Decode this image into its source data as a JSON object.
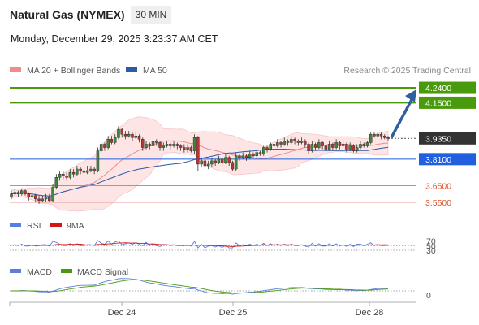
{
  "header": {
    "title": "Natural Gas (NYMEX)",
    "timeframe": "30 MIN",
    "datetime": "Monday, December 29, 2025 3:23:37 AM CET"
  },
  "legend": {
    "ma20_label": "MA 20 + Bollinger Bands",
    "ma50_label": "MA 50",
    "credit": "Research © 2025 Trading Central",
    "rsi_label": "RSI",
    "rsi_ma_label": "9MA",
    "macd_label": "MACD",
    "macd_signal_label": "MACD Signal"
  },
  "colors": {
    "ma20": "#f28b8b",
    "ma50": "#2e5aa8",
    "bollinger_fill": "#fde0e0",
    "target_green": "#4a9a0e",
    "pivot_blue": "#1f5fe0",
    "support_red": "#e87a7a",
    "price_badge": "#333333",
    "arrow": "#2f5f9e",
    "rsi": "#5b7fe0",
    "rsi_ma": "#d01818",
    "macd": "#5b7fe0",
    "macd_signal": "#4a9a0e",
    "candle_up": "#3a8a3a",
    "candle_down": "#c03030"
  },
  "chart_data": {
    "type": "candlestick",
    "instrument": "Natural Gas (NYMEX)",
    "interval": "30 MIN",
    "x_ticks": [
      "Dec 24",
      "Dec 25",
      "Dec 28"
    ],
    "levels": [
      {
        "value": 4.24,
        "label": "4.2400",
        "kind": "resistance"
      },
      {
        "value": 4.15,
        "label": "4.1500",
        "kind": "resistance"
      },
      {
        "value": 3.935,
        "label": "3.9350",
        "kind": "last"
      },
      {
        "value": 3.81,
        "label": "3.8100",
        "kind": "pivot"
      },
      {
        "value": 3.65,
        "label": "3.6500",
        "kind": "support"
      },
      {
        "value": 3.55,
        "label": "3.5500",
        "kind": "support"
      }
    ],
    "target_arrow": {
      "from": 3.935,
      "to": 4.24
    },
    "candles": [
      [
        3.58,
        3.6,
        3.62,
        3.57
      ],
      [
        3.6,
        3.61,
        3.63,
        3.59
      ],
      [
        3.61,
        3.6,
        3.62,
        3.58
      ],
      [
        3.6,
        3.62,
        3.63,
        3.59
      ],
      [
        3.62,
        3.6,
        3.63,
        3.59
      ],
      [
        3.6,
        3.58,
        3.61,
        3.56
      ],
      [
        3.58,
        3.59,
        3.61,
        3.57
      ],
      [
        3.59,
        3.57,
        3.6,
        3.55
      ],
      [
        3.57,
        3.56,
        3.59,
        3.54
      ],
      [
        3.56,
        3.57,
        3.59,
        3.55
      ],
      [
        3.57,
        3.58,
        3.6,
        3.55
      ],
      [
        3.58,
        3.56,
        3.6,
        3.55
      ],
      [
        3.56,
        3.64,
        3.66,
        3.55
      ],
      [
        3.64,
        3.7,
        3.72,
        3.63
      ],
      [
        3.7,
        3.72,
        3.74,
        3.68
      ],
      [
        3.72,
        3.71,
        3.74,
        3.69
      ],
      [
        3.71,
        3.7,
        3.73,
        3.68
      ],
      [
        3.7,
        3.73,
        3.75,
        3.69
      ],
      [
        3.73,
        3.72,
        3.75,
        3.7
      ],
      [
        3.72,
        3.75,
        3.77,
        3.71
      ],
      [
        3.75,
        3.74,
        3.76,
        3.72
      ],
      [
        3.74,
        3.73,
        3.76,
        3.71
      ],
      [
        3.73,
        3.74,
        3.77,
        3.72
      ],
      [
        3.74,
        3.75,
        3.77,
        3.73
      ],
      [
        3.75,
        3.74,
        3.76,
        3.72
      ],
      [
        3.74,
        3.86,
        3.88,
        3.73
      ],
      [
        3.86,
        3.9,
        3.92,
        3.85
      ],
      [
        3.9,
        3.88,
        3.91,
        3.86
      ],
      [
        3.88,
        3.93,
        3.95,
        3.87
      ],
      [
        3.93,
        3.91,
        3.95,
        3.9
      ],
      [
        3.91,
        3.94,
        3.96,
        3.9
      ],
      [
        3.94,
        3.99,
        4.01,
        3.93
      ],
      [
        3.99,
        3.96,
        4.0,
        3.94
      ],
      [
        3.96,
        3.95,
        3.98,
        3.93
      ],
      [
        3.95,
        3.96,
        3.98,
        3.94
      ],
      [
        3.96,
        3.94,
        3.97,
        3.92
      ],
      [
        3.94,
        3.95,
        3.97,
        3.93
      ],
      [
        3.95,
        3.93,
        3.96,
        3.91
      ],
      [
        3.93,
        3.88,
        3.94,
        3.86
      ],
      [
        3.88,
        3.9,
        3.92,
        3.87
      ],
      [
        3.9,
        3.89,
        3.91,
        3.87
      ],
      [
        3.89,
        3.92,
        3.94,
        3.88
      ],
      [
        3.92,
        3.91,
        3.93,
        3.89
      ],
      [
        3.91,
        3.88,
        3.92,
        3.86
      ],
      [
        3.88,
        3.89,
        3.91,
        3.86
      ],
      [
        3.89,
        3.9,
        3.92,
        3.88
      ],
      [
        3.9,
        3.89,
        3.91,
        3.87
      ],
      [
        3.89,
        3.9,
        3.92,
        3.88
      ],
      [
        3.9,
        3.89,
        3.91,
        3.87
      ],
      [
        3.89,
        3.88,
        3.9,
        3.86
      ],
      [
        3.88,
        3.87,
        3.9,
        3.85
      ],
      [
        3.87,
        3.88,
        3.9,
        3.85
      ],
      [
        3.88,
        3.86,
        3.89,
        3.85
      ],
      [
        3.86,
        3.94,
        3.96,
        3.84
      ],
      [
        3.94,
        3.78,
        3.95,
        3.74
      ],
      [
        3.78,
        3.8,
        3.82,
        3.76
      ],
      [
        3.8,
        3.77,
        3.82,
        3.75
      ],
      [
        3.77,
        3.78,
        3.8,
        3.75
      ],
      [
        3.78,
        3.8,
        3.82,
        3.76
      ],
      [
        3.8,
        3.79,
        3.81,
        3.77
      ],
      [
        3.79,
        3.81,
        3.83,
        3.78
      ],
      [
        3.81,
        3.79,
        3.82,
        3.77
      ],
      [
        3.79,
        3.82,
        3.84,
        3.78
      ],
      [
        3.82,
        3.79,
        3.83,
        3.77
      ],
      [
        3.79,
        3.75,
        3.8,
        3.74
      ],
      [
        3.75,
        3.83,
        3.85,
        3.74
      ],
      [
        3.83,
        3.82,
        3.84,
        3.8
      ],
      [
        3.82,
        3.83,
        3.85,
        3.81
      ],
      [
        3.83,
        3.82,
        3.84,
        3.8
      ],
      [
        3.82,
        3.84,
        3.86,
        3.81
      ],
      [
        3.84,
        3.83,
        3.85,
        3.82
      ],
      [
        3.83,
        3.85,
        3.87,
        3.82
      ],
      [
        3.85,
        3.84,
        3.86,
        3.83
      ],
      [
        3.84,
        3.88,
        3.89,
        3.83
      ],
      [
        3.88,
        3.87,
        3.89,
        3.85
      ],
      [
        3.87,
        3.9,
        3.91,
        3.86
      ],
      [
        3.9,
        3.89,
        3.91,
        3.87
      ],
      [
        3.89,
        3.91,
        3.93,
        3.88
      ],
      [
        3.91,
        3.9,
        3.92,
        3.88
      ],
      [
        3.9,
        3.92,
        3.94,
        3.89
      ],
      [
        3.92,
        3.91,
        3.93,
        3.89
      ],
      [
        3.91,
        3.93,
        3.95,
        3.9
      ],
      [
        3.93,
        3.92,
        3.94,
        3.9
      ],
      [
        3.92,
        3.91,
        3.93,
        3.89
      ],
      [
        3.91,
        3.92,
        3.94,
        3.9
      ],
      [
        3.92,
        3.9,
        3.93,
        3.88
      ],
      [
        3.9,
        3.86,
        3.91,
        3.84
      ],
      [
        3.86,
        3.9,
        3.92,
        3.85
      ],
      [
        3.9,
        3.88,
        3.91,
        3.86
      ],
      [
        3.88,
        3.91,
        3.93,
        3.87
      ],
      [
        3.91,
        3.89,
        3.92,
        3.87
      ],
      [
        3.89,
        3.87,
        3.9,
        3.85
      ],
      [
        3.87,
        3.9,
        3.92,
        3.86
      ],
      [
        3.9,
        3.88,
        3.91,
        3.86
      ],
      [
        3.88,
        3.91,
        3.93,
        3.87
      ],
      [
        3.91,
        3.89,
        3.92,
        3.87
      ],
      [
        3.89,
        3.9,
        3.92,
        3.88
      ],
      [
        3.9,
        3.87,
        3.91,
        3.85
      ],
      [
        3.87,
        3.89,
        3.91,
        3.86
      ],
      [
        3.89,
        3.86,
        3.9,
        3.85
      ],
      [
        3.86,
        3.88,
        3.9,
        3.85
      ],
      [
        3.88,
        3.9,
        3.92,
        3.87
      ],
      [
        3.9,
        3.89,
        3.91,
        3.88
      ],
      [
        3.89,
        3.91,
        3.92,
        3.88
      ],
      [
        3.91,
        3.96,
        3.97,
        3.9
      ],
      [
        3.96,
        3.95,
        3.97,
        3.94
      ],
      [
        3.95,
        3.96,
        3.97,
        3.94
      ],
      [
        3.96,
        3.95,
        3.97,
        3.93
      ],
      [
        3.95,
        3.94,
        3.96,
        3.93
      ],
      [
        3.94,
        3.935,
        3.95,
        3.92
      ]
    ],
    "rsi": {
      "levels": [
        70,
        50,
        30
      ]
    },
    "macd": {
      "zero_label": "0"
    }
  }
}
